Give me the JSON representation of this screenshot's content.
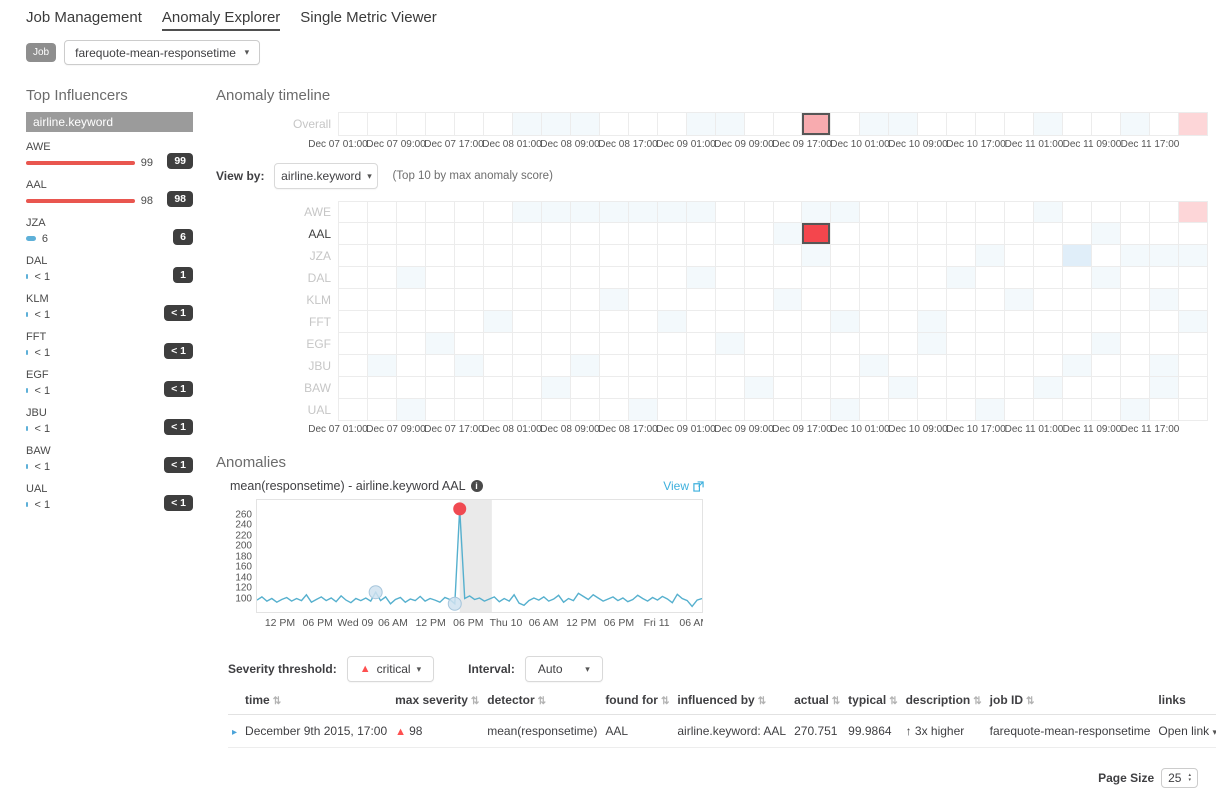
{
  "nav": {
    "tabs": [
      {
        "label": "Job Management",
        "active": false
      },
      {
        "label": "Anomaly Explorer",
        "active": true
      },
      {
        "label": "Single Metric Viewer",
        "active": false
      }
    ]
  },
  "job_selector": {
    "badge": "Job",
    "selected": "farequote-mean-responsetime"
  },
  "influencers": {
    "title": "Top Influencers",
    "field": "airline.keyword",
    "items": [
      {
        "name": "AWE",
        "value": "99",
        "badge": "99",
        "bar_pct": 78,
        "severity": "critical"
      },
      {
        "name": "AAL",
        "value": "98",
        "badge": "98",
        "bar_pct": 77,
        "severity": "critical"
      },
      {
        "name": "JZA",
        "value": "6",
        "badge": "6",
        "bar_pct": 6,
        "severity": "low"
      },
      {
        "name": "DAL",
        "value": "< 1",
        "badge": "1",
        "bar_pct": 1.5,
        "severity": "low"
      },
      {
        "name": "KLM",
        "value": "< 1",
        "badge": "< 1",
        "bar_pct": 1.5,
        "severity": "low"
      },
      {
        "name": "FFT",
        "value": "< 1",
        "badge": "< 1",
        "bar_pct": 1.5,
        "severity": "low"
      },
      {
        "name": "EGF",
        "value": "< 1",
        "badge": "< 1",
        "bar_pct": 1.5,
        "severity": "low"
      },
      {
        "name": "JBU",
        "value": "< 1",
        "badge": "< 1",
        "bar_pct": 1.5,
        "severity": "low"
      },
      {
        "name": "BAW",
        "value": "< 1",
        "badge": "< 1",
        "bar_pct": 1.5,
        "severity": "low"
      },
      {
        "name": "UAL",
        "value": "< 1",
        "badge": "< 1",
        "bar_pct": 1.5,
        "severity": "low"
      }
    ]
  },
  "timeline": {
    "title": "Anomaly timeline",
    "overall_label": "Overall",
    "cells_per_lane": 30,
    "ticks": [
      "Dec 07 01:00",
      "Dec 07 09:00",
      "Dec 07 17:00",
      "Dec 08 01:00",
      "Dec 08 09:00",
      "Dec 08 17:00",
      "Dec 09 01:00",
      "Dec 09 09:00",
      "Dec 09 17:00",
      "Dec 10 01:00",
      "Dec 10 09:00",
      "Dec 10 17:00",
      "Dec 11 01:00",
      "Dec 11 09:00",
      "Dec 11 17:00"
    ],
    "overall_cells": {
      "faint": [
        6,
        7,
        8,
        12,
        13,
        18,
        19,
        24,
        27
      ],
      "pink": [
        29
      ],
      "selected_pink": [
        16
      ]
    },
    "view_by": {
      "label": "View by:",
      "selected": "airline.keyword",
      "note": "(Top 10 by max anomaly score)"
    },
    "lanes": [
      {
        "name": "AWE",
        "active": false,
        "cells": {
          "faint": [
            6,
            7,
            8,
            9,
            10,
            11,
            12,
            16,
            17,
            24
          ],
          "pink": [
            29
          ]
        }
      },
      {
        "name": "AAL",
        "active": true,
        "cells": {
          "faint": [
            15,
            26
          ],
          "selected_red": [
            16
          ]
        }
      },
      {
        "name": "JZA",
        "active": false,
        "cells": {
          "faint": [
            16,
            22,
            27,
            28,
            29
          ],
          "lowblue": [
            25
          ]
        }
      },
      {
        "name": "DAL",
        "active": false,
        "cells": {
          "faint": [
            2,
            12,
            21,
            26
          ]
        }
      },
      {
        "name": "KLM",
        "active": false,
        "cells": {
          "faint": [
            9,
            15,
            23,
            28
          ]
        }
      },
      {
        "name": "FFT",
        "active": false,
        "cells": {
          "faint": [
            5,
            11,
            17,
            20,
            29
          ]
        }
      },
      {
        "name": "EGF",
        "active": false,
        "cells": {
          "faint": [
            3,
            13,
            20,
            26
          ]
        }
      },
      {
        "name": "JBU",
        "active": false,
        "cells": {
          "faint": [
            1,
            4,
            8,
            18,
            25,
            28
          ]
        }
      },
      {
        "name": "BAW",
        "active": false,
        "cells": {
          "faint": [
            7,
            14,
            19,
            24,
            28
          ]
        }
      },
      {
        "name": "UAL",
        "active": false,
        "cells": {
          "faint": [
            2,
            10,
            17,
            22,
            27
          ]
        }
      }
    ]
  },
  "anomalies": {
    "title": "Anomalies",
    "chart_header": {
      "title": "mean(responsetime) - airline.keyword AAL",
      "info": "i",
      "view_link": "View"
    },
    "controls": {
      "severity_label": "Severity threshold:",
      "severity_value": "critical",
      "interval_label": "Interval:",
      "interval_value": "Auto"
    },
    "table": {
      "columns": [
        {
          "label": "time",
          "sortable": true
        },
        {
          "label": "max severity",
          "sortable": true
        },
        {
          "label": "detector",
          "sortable": true
        },
        {
          "label": "found for",
          "sortable": true
        },
        {
          "label": "influenced by",
          "sortable": true
        },
        {
          "label": "actual",
          "sortable": true
        },
        {
          "label": "typical",
          "sortable": true
        },
        {
          "label": "description",
          "sortable": true
        },
        {
          "label": "job ID",
          "sortable": true
        },
        {
          "label": "links",
          "sortable": false
        }
      ],
      "rows": [
        {
          "time": "December 9th 2015, 17:00",
          "max_severity": "98",
          "detector": "mean(responsetime)",
          "found_for": "AAL",
          "influenced_by": "airline.keyword: AAL",
          "actual": "270.751",
          "typical": "99.9864",
          "description": "3x higher",
          "job_id": "farequote-mean-responsetime",
          "links": "Open link"
        }
      ]
    },
    "page_size": {
      "label": "Page Size",
      "value": "25"
    }
  },
  "chart_data": {
    "type": "line",
    "title": "mean(responsetime) - airline.keyword AAL",
    "ylim": [
      80,
      280
    ],
    "yticks": [
      260,
      240,
      220,
      200,
      180,
      160,
      140,
      120,
      100
    ],
    "xticks": [
      "12 PM",
      "06 PM",
      "Wed 09",
      "06 AM",
      "12 PM",
      "06 PM",
      "Thu 10",
      "06 AM",
      "12 PM",
      "06 PM",
      "Fri 11",
      "06 AM"
    ],
    "values": [
      97,
      103,
      95,
      100,
      93,
      98,
      102,
      95,
      100,
      96,
      107,
      93,
      98,
      103,
      96,
      101,
      94,
      105,
      97,
      92,
      100,
      96,
      101,
      95,
      112,
      96,
      103,
      90,
      98,
      102,
      93,
      99,
      96,
      104,
      95,
      100,
      97,
      93,
      102,
      98,
      90,
      270.751,
      100,
      105,
      98,
      101,
      95,
      99,
      103,
      94,
      100,
      95,
      107,
      91,
      87,
      96,
      101,
      97,
      103,
      95,
      99,
      106,
      93,
      100,
      96,
      110,
      104,
      98,
      107,
      101,
      95,
      99,
      103,
      96,
      101,
      94,
      98,
      106,
      100,
      95,
      102,
      97,
      104,
      99,
      92,
      108,
      100,
      96,
      85,
      97,
      100
    ],
    "markers": [
      {
        "index": 24,
        "value": 112,
        "severity": "low"
      },
      {
        "index": 40,
        "value": 90,
        "severity": "low"
      },
      {
        "index": 41,
        "value": 270.751,
        "severity": "critical"
      }
    ],
    "selection_band": {
      "start_index": 41,
      "end_index": 47.5
    },
    "line_color": "#56b0ce",
    "marker_low_fill": "#cfe2f0",
    "marker_low_stroke": "#a7c6dc",
    "marker_critical_fill": "#f04a52"
  },
  "colors": {
    "critical_red": "#fe5050",
    "bar_red": "#e9564f",
    "bar_blue": "#5eb0d8",
    "selected_border": "#565656",
    "link_blue": "#3eb0dd",
    "badge_bg": "#3e3e3e"
  }
}
